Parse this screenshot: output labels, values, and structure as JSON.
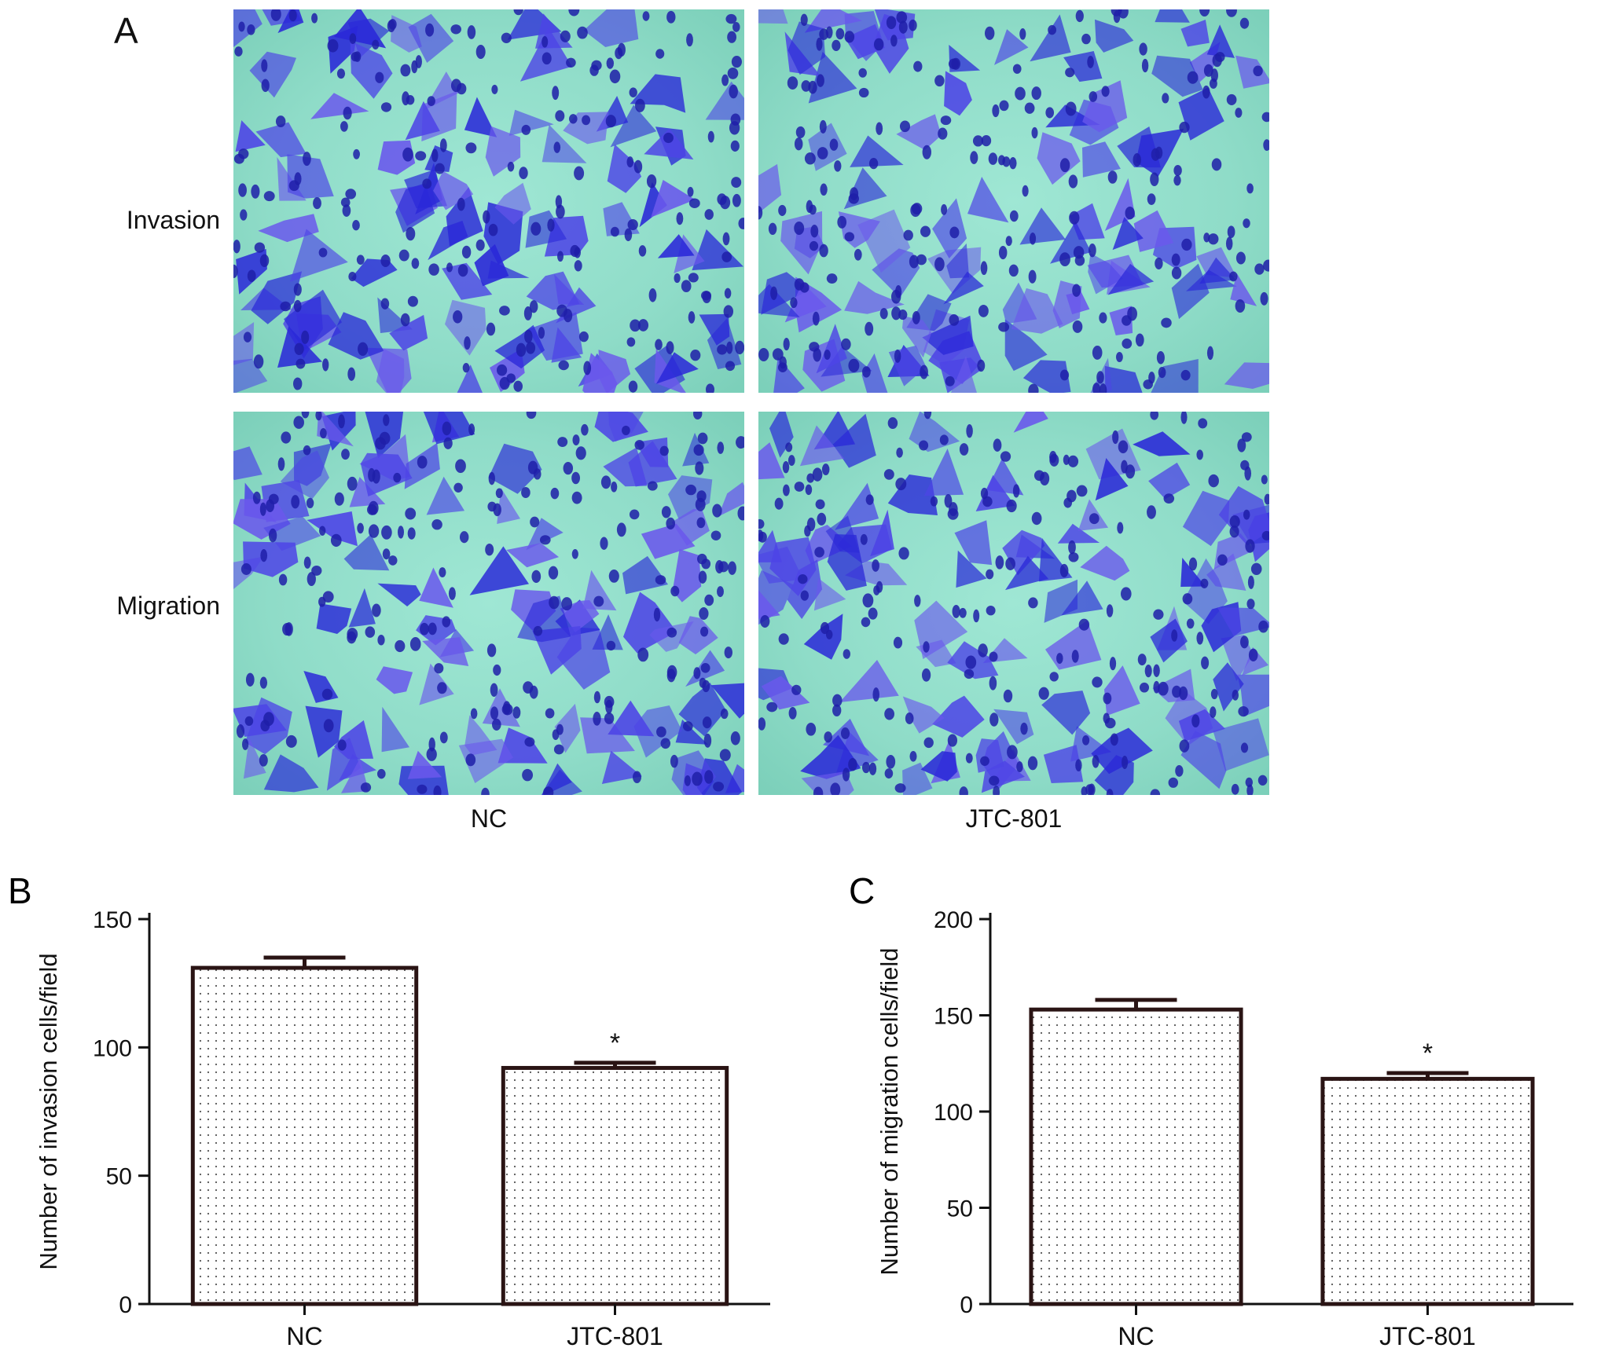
{
  "panel_a": {
    "letter": "A",
    "row_labels": [
      "Invasion",
      "Migration"
    ],
    "col_labels": [
      "NC",
      "JTC-801"
    ],
    "stain_colors": [
      "#2a28d8",
      "#4d44e6",
      "#6a58ec",
      "#1f1fa8"
    ],
    "background_color": "#8fdcc8"
  },
  "chart_data": [
    {
      "panel": "B",
      "type": "bar",
      "categories": [
        "NC",
        "JTC-801"
      ],
      "values": [
        131,
        92
      ],
      "errors": [
        4,
        2
      ],
      "annotations": [
        "",
        "*"
      ],
      "ylabel": "Number of invasion cells/field",
      "xlabel": "",
      "ylim": [
        0,
        150
      ],
      "yticks": [
        0,
        50,
        100,
        150
      ],
      "bar_fill": "dotted",
      "grid": false,
      "legend": "none"
    },
    {
      "panel": "C",
      "type": "bar",
      "categories": [
        "NC",
        "JTC-801"
      ],
      "values": [
        153,
        117
      ],
      "errors": [
        5,
        3
      ],
      "annotations": [
        "",
        "*"
      ],
      "ylabel": "Number of migration cells/field",
      "xlabel": "",
      "ylim": [
        0,
        200
      ],
      "yticks": [
        0,
        50,
        100,
        150,
        200
      ],
      "bar_fill": "dotted",
      "grid": false,
      "legend": "none"
    }
  ]
}
